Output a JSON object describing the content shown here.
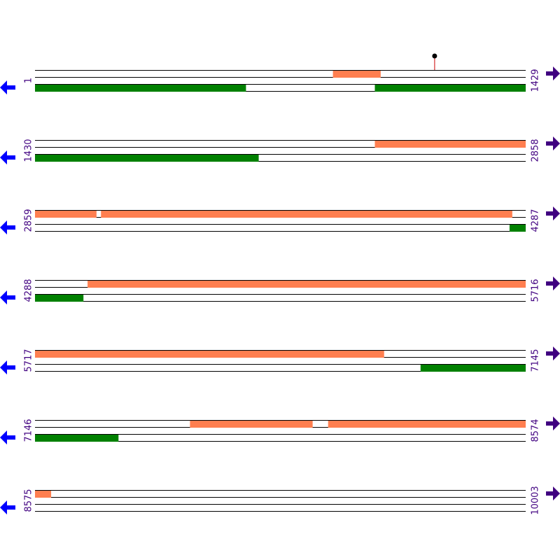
{
  "map": {
    "forward_color": "#ff7f50",
    "reverse_color": "#008000",
    "label_color": "#400080",
    "marker_color": "#cc0000",
    "rows": [
      {
        "start": 1,
        "end": 1429,
        "forward": [
          [
            868,
            1007
          ]
        ],
        "reverse": [
          [
            1,
            615
          ],
          [
            990,
            1429
          ]
        ]
      },
      {
        "start": 1430,
        "end": 2858,
        "forward": [
          [
            2419,
            2858
          ]
        ],
        "reverse": [
          [
            1430,
            2081
          ]
        ]
      },
      {
        "start": 2859,
        "end": 4287,
        "forward": [
          [
            2859,
            3038
          ],
          [
            3051,
            4248
          ]
        ],
        "reverse": [
          [
            4240,
            4287
          ]
        ]
      },
      {
        "start": 4288,
        "end": 5716,
        "forward": [
          [
            4441,
            5716
          ]
        ],
        "reverse": [
          [
            4288,
            4429
          ]
        ]
      },
      {
        "start": 5717,
        "end": 7145,
        "forward": [
          [
            5717,
            6733
          ]
        ],
        "reverse": [
          [
            6839,
            7145
          ]
        ]
      },
      {
        "start": 7146,
        "end": 8574,
        "forward": [
          [
            7597,
            7954
          ],
          [
            7999,
            8574
          ]
        ],
        "reverse": [
          [
            7146,
            7389
          ]
        ]
      },
      {
        "start": 8575,
        "end": 10003,
        "forward": [
          [
            8575,
            8622
          ]
        ],
        "reverse": []
      }
    ],
    "markers": [
      1164
    ]
  }
}
